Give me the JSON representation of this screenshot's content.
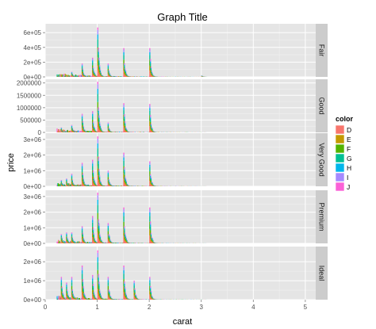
{
  "chart_data": {
    "type": "bar",
    "title": "Graph Title",
    "xlabel": "carat",
    "ylabel": "price",
    "xlim": [
      0,
      5.2
    ],
    "x_ticks": [
      0,
      1,
      2,
      3,
      4,
      5
    ],
    "x_tick_labels": [
      "0",
      "1",
      "2",
      "3",
      "4",
      "5"
    ],
    "grid": true,
    "legend": {
      "title": "color",
      "position": "right",
      "entries": [
        {
          "label": "D",
          "color": "#F8766D"
        },
        {
          "label": "E",
          "color": "#C49A00"
        },
        {
          "label": "F",
          "color": "#53B400"
        },
        {
          "label": "G",
          "color": "#00C094"
        },
        {
          "label": "H",
          "color": "#00B6EB"
        },
        {
          "label": "I",
          "color": "#A58AFF"
        },
        {
          "label": "J",
          "color": "#FB61D7"
        }
      ]
    },
    "facets": [
      {
        "label": "Fair",
        "ylim": [
          0,
          720000
        ],
        "y_ticks": [
          0,
          200000,
          400000,
          600000
        ],
        "y_tick_labels": [
          "0e+00",
          "2e+05",
          "4e+05",
          "6e+05"
        ],
        "peaks": [
          [
            0.5,
            70000
          ],
          [
            0.7,
            180000
          ],
          [
            0.9,
            260000
          ],
          [
            1.0,
            670000
          ],
          [
            1.2,
            180000
          ],
          [
            1.5,
            390000
          ],
          [
            2.0,
            390000
          ],
          [
            3.0,
            20000
          ]
        ]
      },
      {
        "label": "Good",
        "ylim": [
          0,
          2150000
        ],
        "y_ticks": [
          0,
          500000,
          1000000,
          1500000,
          2000000
        ],
        "y_tick_labels": [
          "0",
          "500000",
          "1000000",
          "1500000",
          "2000000"
        ],
        "peaks": [
          [
            0.3,
            200000
          ],
          [
            0.5,
            300000
          ],
          [
            0.7,
            750000
          ],
          [
            0.9,
            860000
          ],
          [
            1.0,
            2050000
          ],
          [
            1.2,
            400000
          ],
          [
            1.5,
            1180000
          ],
          [
            2.0,
            1150000
          ]
        ]
      },
      {
        "label": "Very Good",
        "ylim": [
          0,
          3400000
        ],
        "y_ticks": [
          0,
          1000000,
          2000000,
          3000000
        ],
        "y_tick_labels": [
          "0e+00",
          "1e+06",
          "2e+06",
          "3e+06"
        ],
        "peaks": [
          [
            0.3,
            400000
          ],
          [
            0.4,
            500000
          ],
          [
            0.5,
            800000
          ],
          [
            0.7,
            1500000
          ],
          [
            0.9,
            1700000
          ],
          [
            1.0,
            3200000
          ],
          [
            1.2,
            1000000
          ],
          [
            1.5,
            2150000
          ],
          [
            2.0,
            1600000
          ]
        ]
      },
      {
        "label": "Premium",
        "ylim": [
          0,
          3400000
        ],
        "y_ticks": [
          0,
          1000000,
          2000000,
          3000000
        ],
        "y_tick_labels": [
          "0e+00",
          "1e+06",
          "2e+06",
          "3e+06"
        ],
        "peaks": [
          [
            0.3,
            600000
          ],
          [
            0.4,
            700000
          ],
          [
            0.5,
            700000
          ],
          [
            0.7,
            1100000
          ],
          [
            0.9,
            1750000
          ],
          [
            1.0,
            3250000
          ],
          [
            1.2,
            1300000
          ],
          [
            1.5,
            2300000
          ],
          [
            2.0,
            2300000
          ]
        ]
      },
      {
        "label": "Ideal",
        "ylim": [
          0,
          2800000
        ],
        "y_ticks": [
          0,
          1000000,
          2000000
        ],
        "y_tick_labels": [
          "0e+00",
          "1e+06",
          "2e+06"
        ],
        "peaks": [
          [
            0.3,
            1200000
          ],
          [
            0.4,
            900000
          ],
          [
            0.5,
            1200000
          ],
          [
            0.7,
            1800000
          ],
          [
            0.9,
            1300000
          ],
          [
            1.0,
            2600000
          ],
          [
            1.2,
            1200000
          ],
          [
            1.5,
            1800000
          ],
          [
            1.7,
            1000000
          ],
          [
            2.0,
            1200000
          ]
        ]
      }
    ]
  }
}
